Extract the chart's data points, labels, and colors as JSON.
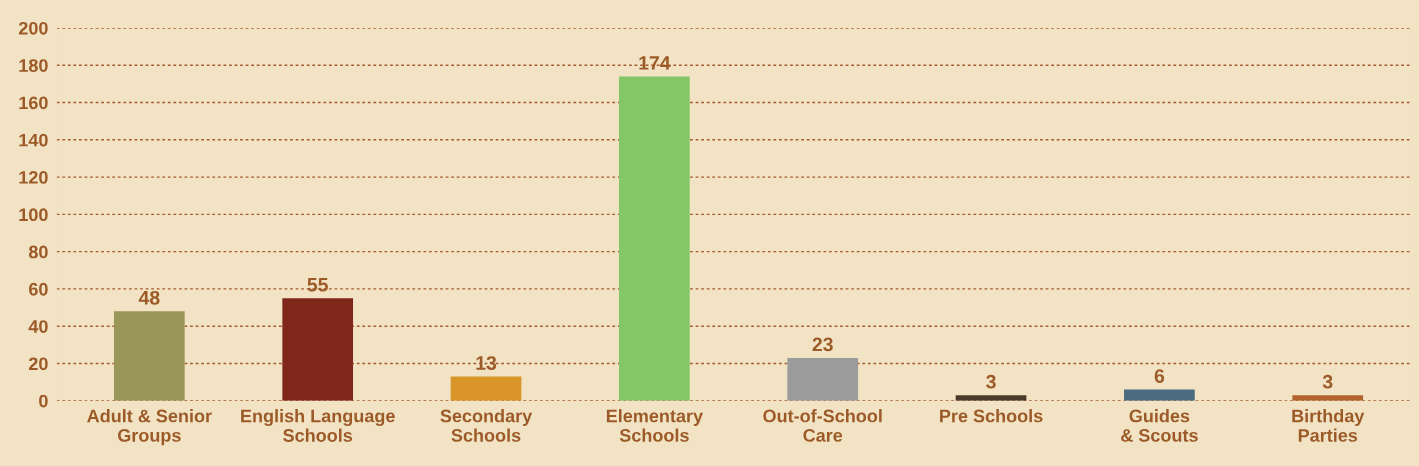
{
  "chart_data": {
    "type": "bar",
    "categories": [
      "Adult & Senior\nGroups",
      "English Language\nSchools",
      "Secondary\nSchools",
      "Elementary\nSchools",
      "Out-of-School\nCare",
      "Pre Schools",
      "Guides\n& Scouts",
      "Birthday\nParties"
    ],
    "values": [
      48,
      55,
      13,
      174,
      23,
      3,
      6,
      3
    ],
    "colors": [
      "#9a9658",
      "#80271b",
      "#d9952a",
      "#84c767",
      "#9b9b9b",
      "#4a3a2a",
      "#4a6b80",
      "#b0632a"
    ],
    "ylim": [
      0,
      200
    ],
    "yticks": [
      0,
      20,
      40,
      60,
      80,
      100,
      120,
      140,
      160,
      180,
      200
    ],
    "grid": "y",
    "data_labels": true
  }
}
